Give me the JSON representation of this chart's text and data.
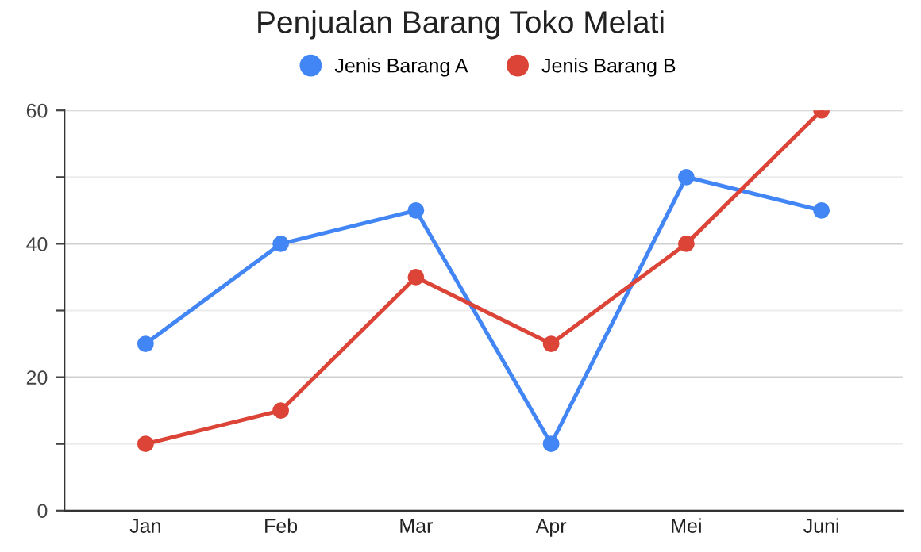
{
  "chart_data": {
    "type": "line",
    "title": "Penjualan Barang Toko Melati",
    "categories": [
      "Jan",
      "Feb",
      "Mar",
      "Apr",
      "Mei",
      "Juni"
    ],
    "series": [
      {
        "name": "Jenis Barang A",
        "color": "#4285f4",
        "values": [
          25,
          40,
          45,
          10,
          50,
          45
        ]
      },
      {
        "name": "Jenis Barang B",
        "color": "#db4437",
        "values": [
          10,
          15,
          35,
          25,
          40,
          60
        ]
      }
    ],
    "ylim": [
      0,
      60
    ],
    "yticks": [
      0,
      {
        "value": 10,
        "label": null
      },
      20,
      {
        "value": 30,
        "label": null
      },
      40,
      {
        "value": 50,
        "label": null
      },
      60
    ],
    "grid": "y",
    "legend": "top",
    "marker": "circle",
    "line_style": "solid"
  }
}
